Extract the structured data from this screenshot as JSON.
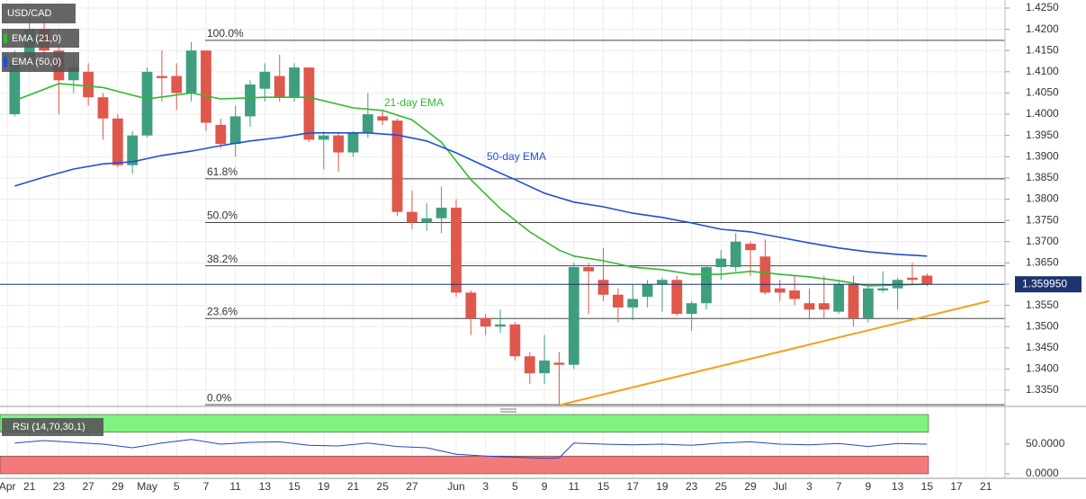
{
  "chart_data": [
    {
      "type": "candlestick",
      "title": "USD/CAD",
      "xlim": [
        -1,
        67.3
      ],
      "ylim": [
        1.3312,
        1.4269
      ],
      "xticks": [
        {
          "value": -0.5,
          "label": "Apr"
        },
        {
          "value": 1,
          "label": "21"
        },
        {
          "value": 3,
          "label": "23"
        },
        {
          "value": 5,
          "label": "27"
        },
        {
          "value": 7,
          "label": "29"
        },
        {
          "value": 9,
          "label": "May"
        },
        {
          "value": 11,
          "label": "5"
        },
        {
          "value": 13,
          "label": "7"
        },
        {
          "value": 15,
          "label": "11"
        },
        {
          "value": 17,
          "label": "13"
        },
        {
          "value": 19,
          "label": "15"
        },
        {
          "value": 21,
          "label": "19"
        },
        {
          "value": 23,
          "label": "21"
        },
        {
          "value": 25,
          "label": "25"
        },
        {
          "value": 27,
          "label": "27"
        },
        {
          "value": 30,
          "label": "Jun"
        },
        {
          "value": 32,
          "label": "3"
        },
        {
          "value": 34,
          "label": "5"
        },
        {
          "value": 36,
          "label": "9"
        },
        {
          "value": 38,
          "label": "11"
        },
        {
          "value": 40,
          "label": "15"
        },
        {
          "value": 42,
          "label": "17"
        },
        {
          "value": 44,
          "label": "19"
        },
        {
          "value": 46,
          "label": "23"
        },
        {
          "value": 48,
          "label": "25"
        },
        {
          "value": 50,
          "label": "29"
        },
        {
          "value": 52,
          "label": "Jul"
        },
        {
          "value": 54,
          "label": "3"
        },
        {
          "value": 56,
          "label": "7"
        },
        {
          "value": 58,
          "label": "9"
        },
        {
          "value": 60,
          "label": "13"
        },
        {
          "value": 62,
          "label": "15"
        },
        {
          "value": 64,
          "label": "17"
        },
        {
          "value": 66,
          "label": "21"
        }
      ],
      "yticks": [
        {
          "value": 1.425,
          "label": "1.4250"
        },
        {
          "value": 1.42,
          "label": "1.4200"
        },
        {
          "value": 1.415,
          "label": "1.4150"
        },
        {
          "value": 1.41,
          "label": "1.4100"
        },
        {
          "value": 1.405,
          "label": "1.4050"
        },
        {
          "value": 1.4,
          "label": "1.4000"
        },
        {
          "value": 1.395,
          "label": "1.3950"
        },
        {
          "value": 1.39,
          "label": "1.3900"
        },
        {
          "value": 1.385,
          "label": "1.3850"
        },
        {
          "value": 1.38,
          "label": "1.3800"
        },
        {
          "value": 1.375,
          "label": "1.3750"
        },
        {
          "value": 1.37,
          "label": "1.3700"
        },
        {
          "value": 1.365,
          "label": "1.3650"
        },
        {
          "value": 1.36,
          "label": "1.3600"
        },
        {
          "value": 1.355,
          "label": "1.3550"
        },
        {
          "value": 1.35,
          "label": "1.3500"
        },
        {
          "value": 1.345,
          "label": "1.3450"
        },
        {
          "value": 1.34,
          "label": "1.3400"
        },
        {
          "value": 1.335,
          "label": "1.3350"
        }
      ],
      "grid": true,
      "up_color": "#3f9e80",
      "down_color": "#e0574c",
      "open": [
        1.4,
        1.412,
        1.42,
        1.415,
        1.408,
        1.41,
        1.404,
        1.399,
        1.388,
        1.395,
        1.409,
        1.409,
        1.405,
        1.415,
        1.3975,
        1.393,
        1.3995,
        1.406,
        1.409,
        1.404,
        1.411,
        1.394,
        1.395,
        1.391,
        1.3955,
        1.3995,
        1.3985,
        1.377,
        1.3745,
        1.3755,
        1.378,
        1.358,
        1.352,
        1.35,
        1.3505,
        1.343,
        1.339,
        1.3415,
        1.341,
        1.364,
        1.361,
        1.3575,
        1.3545,
        1.357,
        1.36,
        1.361,
        1.353,
        1.3555,
        1.364,
        1.364,
        1.3695,
        1.3665,
        1.359,
        1.3585,
        1.3555,
        1.3555,
        1.3535,
        1.36,
        1.352,
        1.3585,
        1.359,
        1.3615,
        1.362
      ],
      "high": [
        1.415,
        1.425,
        1.424,
        1.418,
        1.414,
        1.412,
        1.405,
        1.4,
        1.396,
        1.411,
        1.415,
        1.412,
        1.417,
        1.415,
        1.399,
        1.402,
        1.408,
        1.412,
        1.414,
        1.412,
        1.411,
        1.396,
        1.3955,
        1.396,
        1.405,
        1.401,
        1.399,
        1.382,
        1.379,
        1.383,
        1.38,
        1.3585,
        1.353,
        1.354,
        1.351,
        1.344,
        1.348,
        1.344,
        1.365,
        1.365,
        1.3685,
        1.359,
        1.36,
        1.361,
        1.3615,
        1.362,
        1.356,
        1.3645,
        1.368,
        1.372,
        1.37,
        1.3705,
        1.361,
        1.362,
        1.359,
        1.362,
        1.361,
        1.362,
        1.36,
        1.363,
        1.3615,
        1.365,
        1.3625
      ],
      "low": [
        1.3995,
        1.41,
        1.412,
        1.4,
        1.405,
        1.402,
        1.394,
        1.3875,
        1.386,
        1.3945,
        1.403,
        1.401,
        1.403,
        1.396,
        1.392,
        1.39,
        1.397,
        1.403,
        1.403,
        1.403,
        1.3935,
        1.387,
        1.3865,
        1.39,
        1.3945,
        1.3975,
        1.376,
        1.373,
        1.3725,
        1.372,
        1.357,
        1.348,
        1.348,
        1.3485,
        1.342,
        1.3365,
        1.3365,
        1.3315,
        1.34,
        1.353,
        1.356,
        1.351,
        1.3515,
        1.3545,
        1.3535,
        1.3525,
        1.349,
        1.354,
        1.361,
        1.363,
        1.362,
        1.3575,
        1.356,
        1.355,
        1.352,
        1.352,
        1.353,
        1.35,
        1.351,
        1.358,
        1.354,
        1.36,
        1.3595
      ],
      "close": [
        1.412,
        1.42,
        1.415,
        1.408,
        1.411,
        1.404,
        1.399,
        1.388,
        1.395,
        1.41,
        1.4085,
        1.405,
        1.415,
        1.398,
        1.393,
        1.3995,
        1.407,
        1.41,
        1.404,
        1.411,
        1.394,
        1.395,
        1.391,
        1.3955,
        1.4,
        1.3985,
        1.377,
        1.3745,
        1.3755,
        1.378,
        1.358,
        1.352,
        1.35,
        1.3505,
        1.343,
        1.339,
        1.342,
        1.341,
        1.364,
        1.363,
        1.3575,
        1.3545,
        1.3565,
        1.36,
        1.361,
        1.353,
        1.3555,
        1.364,
        1.366,
        1.37,
        1.368,
        1.358,
        1.358,
        1.3565,
        1.354,
        1.354,
        1.36,
        1.352,
        1.359,
        1.359,
        1.361,
        1.361,
        1.36
      ],
      "series": [
        {
          "name": "EMA (21,0)",
          "color": "#2fba2f",
          "x": [
            0,
            3,
            6,
            9,
            12,
            14,
            17,
            20,
            23,
            25,
            27,
            29,
            31,
            33,
            35,
            37,
            38,
            40,
            42,
            44,
            46,
            48,
            50,
            52,
            54,
            56,
            58,
            60,
            62
          ],
          "values": [
            1.4032,
            1.4072,
            1.4063,
            1.4036,
            1.405,
            1.4036,
            1.404,
            1.404,
            1.4015,
            1.4009,
            1.3987,
            1.3934,
            1.3846,
            1.3778,
            1.3723,
            1.368,
            1.3666,
            1.3655,
            1.364,
            1.3634,
            1.3623,
            1.3623,
            1.363,
            1.3623,
            1.3617,
            1.3608,
            1.3596,
            1.3598,
            1.36
          ]
        },
        {
          "name": "EMA (50,0)",
          "color": "#1f4fd8",
          "x": [
            0,
            2,
            4,
            6,
            8,
            10,
            12,
            14,
            16,
            18,
            20,
            22,
            24,
            26,
            28,
            30,
            32,
            34,
            36,
            38,
            40,
            42,
            44,
            46,
            48,
            50,
            52,
            54,
            56,
            58,
            60,
            62
          ],
          "values": [
            1.3831,
            1.3852,
            1.3871,
            1.3883,
            1.3888,
            1.3903,
            1.3913,
            1.3926,
            1.3937,
            1.3945,
            1.3956,
            1.3956,
            1.3956,
            1.3951,
            1.3937,
            1.3909,
            1.3877,
            1.3846,
            1.3814,
            1.3793,
            1.3782,
            1.3767,
            1.3757,
            1.3744,
            1.3729,
            1.3723,
            1.371,
            1.3697,
            1.3685,
            1.3676,
            1.367,
            1.3666
          ]
        }
      ],
      "annotations": [
        {
          "text": "21-day EMA",
          "color": "#2fba2f"
        },
        {
          "text": "50-day EMA",
          "color": "#1f4fd8"
        }
      ],
      "fib_levels": [
        {
          "label": "100.0%",
          "value": 1.4174
        },
        {
          "label": "61.8%",
          "value": 1.3848
        },
        {
          "label": "50.0%",
          "value": 1.3745
        },
        {
          "label": "38.2%",
          "value": 1.3643
        },
        {
          "label": "23.6%",
          "value": 1.3519
        },
        {
          "label": "0.0%",
          "value": 1.3316
        }
      ],
      "trendline": {
        "color": "#f5a020",
        "x": [
          37,
          66.2
        ],
        "values": [
          1.3315,
          1.356
        ]
      },
      "last_price": {
        "value": 1.35995,
        "label": "1.359950",
        "color": "#1c3470"
      }
    },
    {
      "type": "line",
      "title": "RSI (14,70,30,1)",
      "color": "#2346c8",
      "xlim": [
        -1,
        67.3
      ],
      "ylim": [
        0,
        100
      ],
      "yticks": [
        {
          "value": 50,
          "label": "50.0000"
        },
        {
          "value": 0,
          "label": "0.0000"
        }
      ],
      "bands": [
        {
          "from": 70,
          "to": 100,
          "color": "#7ff27f"
        },
        {
          "from": 0,
          "to": 30,
          "color": "#f47a7a"
        }
      ],
      "x": [
        0,
        2,
        4,
        6,
        8,
        10,
        12,
        14,
        16,
        18,
        20,
        22,
        24,
        26,
        28,
        30,
        32,
        34,
        36,
        37,
        38,
        40,
        42,
        44,
        46,
        48,
        50,
        52,
        54,
        56,
        58,
        60,
        62
      ],
      "values": [
        52,
        56,
        53,
        50,
        44,
        52,
        58,
        50,
        53,
        54,
        48,
        47,
        52,
        46,
        44,
        33,
        30,
        28,
        26,
        27,
        52,
        50,
        49,
        50,
        48,
        52,
        54,
        50,
        49,
        51,
        46,
        51,
        50
      ]
    }
  ]
}
